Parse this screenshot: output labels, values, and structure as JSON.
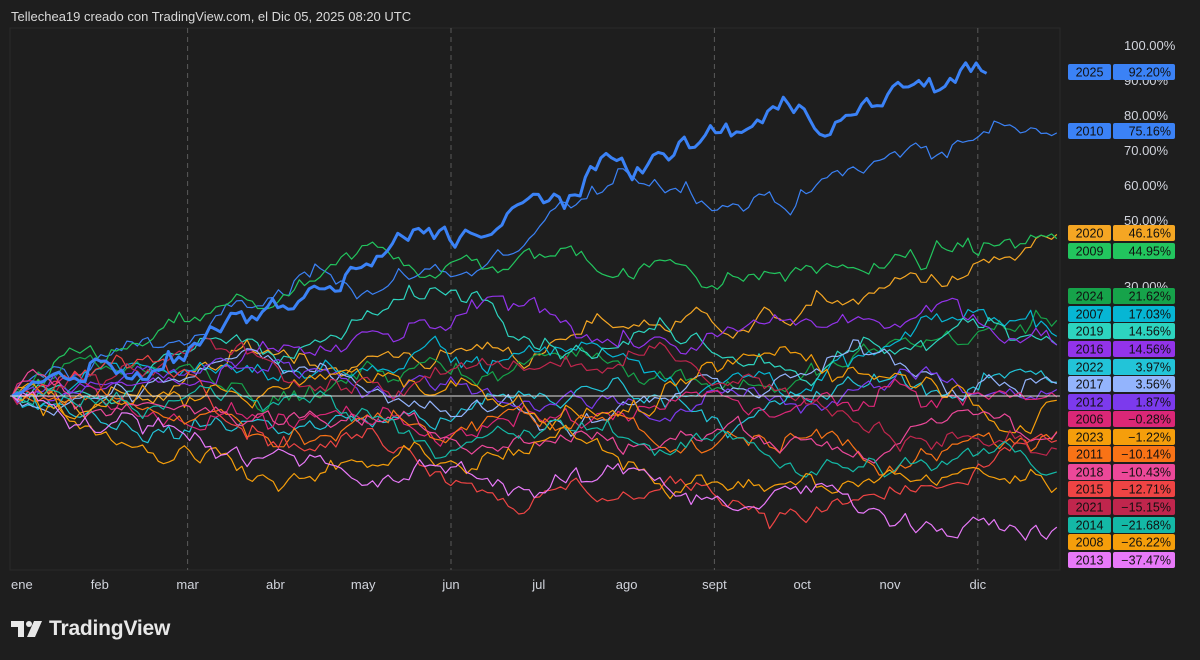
{
  "header": {
    "attribution": "Tellechea19 creado con TradingView.com, el Dic 05, 2025 08:20 UTC"
  },
  "brand": {
    "name": "TradingView"
  },
  "colors": {
    "background": "#1e1e1e",
    "grid": "#5a5a5a",
    "zero_line": "#e0e0e0",
    "axis_text": "#d1d4dc"
  },
  "chart_data": {
    "type": "line",
    "x_axis": {
      "months": [
        "ene",
        "feb",
        "mar",
        "abr",
        "may",
        "jun",
        "jul",
        "ago",
        "sept",
        "oct",
        "nov",
        "dic"
      ]
    },
    "y_axis": {
      "unit": "%",
      "range": [
        -50,
        100
      ],
      "tick_values": [
        100,
        90,
        80,
        70,
        60,
        50
      ],
      "tick_labels": [
        "100.00%",
        "90.00%",
        "80.00%",
        "70.00%",
        "60.00%",
        "50.00%"
      ],
      "partial_tick_labels": [
        "30.00%"
      ]
    },
    "dashed_gridlines_at_months": [
      "mar",
      "jun",
      "sept",
      "dic"
    ],
    "series": [
      {
        "name": "2025",
        "value": 92.2,
        "label": "92.20%",
        "color": "#3b82f6",
        "bold": true,
        "end_month": 11.1
      },
      {
        "name": "2010",
        "value": 75.16,
        "label": "75.16%",
        "color": "#3b82f6"
      },
      {
        "name": "2020",
        "value": 46.16,
        "label": "46.16%",
        "color": "#f5a623"
      },
      {
        "name": "2009",
        "value": 44.95,
        "label": "44.95%",
        "color": "#22c55e"
      },
      {
        "name": "2024",
        "value": 21.62,
        "label": "21.62%",
        "color": "#16a34a"
      },
      {
        "name": "2007",
        "value": 17.03,
        "label": "17.03%",
        "color": "#06b6d4"
      },
      {
        "name": "2019",
        "value": 14.56,
        "label": "14.56%",
        "color": "#2dd4bf"
      },
      {
        "name": "2016",
        "value": 14.56,
        "label": "14.56%",
        "color": "#9333ea"
      },
      {
        "name": "2022",
        "value": 3.97,
        "label": "3.97%",
        "color": "#22c4d8"
      },
      {
        "name": "2017",
        "value": 3.56,
        "label": "3.56%",
        "color": "#93b4fd"
      },
      {
        "name": "2012",
        "value": 1.87,
        "label": "1.87%",
        "color": "#7c3aed"
      },
      {
        "name": "2006",
        "value": -0.28,
        "label": "−0.28%",
        "color": "#db2777"
      },
      {
        "name": "2023",
        "value": -1.22,
        "label": "−1.22%",
        "color": "#f59e0b"
      },
      {
        "name": "2011",
        "value": -10.14,
        "label": "−10.14%",
        "color": "#f97316"
      },
      {
        "name": "2018",
        "value": -10.43,
        "label": "−10.43%",
        "color": "#ec4899"
      },
      {
        "name": "2015",
        "value": -12.71,
        "label": "−12.71%",
        "color": "#ef4444"
      },
      {
        "name": "2021",
        "value": -15.15,
        "label": "−15.15%",
        "color": "#c0264d"
      },
      {
        "name": "2014",
        "value": -21.68,
        "label": "−21.68%",
        "color": "#14b8a6"
      },
      {
        "name": "2008",
        "value": -26.22,
        "label": "−26.22%",
        "color": "#f59e0b"
      },
      {
        "name": "2013",
        "value": -37.47,
        "label": "−37.47%",
        "color": "#e879f9"
      }
    ]
  }
}
